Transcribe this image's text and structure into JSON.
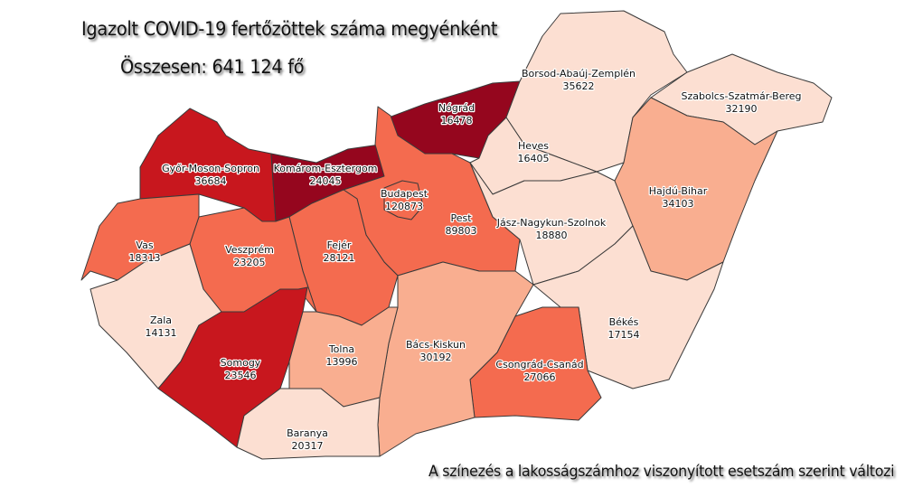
{
  "header": {
    "title": "Igazolt COVID-19 fertőzöttek száma megyénként",
    "total": "Összesen: 641 124 fő"
  },
  "footer": {
    "note": "A színezés a lakosságszámhoz viszonyított esetszám szerint változi"
  },
  "colors": {
    "class1": "#fcdfd2",
    "class2": "#f9ae90",
    "class3": "#f46b4f",
    "class4": "#c8171e",
    "class5": "#95061e"
  },
  "counties": [
    {
      "name": "Győr-Moson-Sopron",
      "cases": "36684",
      "class": "class4"
    },
    {
      "name": "Komárom-Esztergom",
      "cases": "24045",
      "class": "class5"
    },
    {
      "name": "Nógrád",
      "cases": "16478",
      "class": "class5"
    },
    {
      "name": "Pest",
      "cases": "89803",
      "class": "class3"
    },
    {
      "name": "Budapest",
      "cases": "120873",
      "class": "class3"
    },
    {
      "name": "Borsod-Abaúj-Zemplén",
      "cases": "35622",
      "class": "class1"
    },
    {
      "name": "Szabolcs-Szatmár-Bereg",
      "cases": "32190",
      "class": "class1"
    },
    {
      "name": "Heves",
      "cases": "16405",
      "class": "class1"
    },
    {
      "name": "Jász-Nagykun-Szolnok",
      "cases": "18880",
      "class": "class1"
    },
    {
      "name": "Hajdú-Bihar",
      "cases": "34103",
      "class": "class2"
    },
    {
      "name": "Békés",
      "cases": "17154",
      "class": "class1"
    },
    {
      "name": "Csongrád-Csanád",
      "cases": "27066",
      "class": "class3"
    },
    {
      "name": "Bács-Kiskun",
      "cases": "30192",
      "class": "class2"
    },
    {
      "name": "Fejér",
      "cases": "28121",
      "class": "class3"
    },
    {
      "name": "Veszprém",
      "cases": "23205",
      "class": "class3"
    },
    {
      "name": "Vas",
      "cases": "18313",
      "class": "class3"
    },
    {
      "name": "Zala",
      "cases": "14131",
      "class": "class1"
    },
    {
      "name": "Somogy",
      "cases": "23546",
      "class": "class4"
    },
    {
      "name": "Tolna",
      "cases": "13996",
      "class": "class2"
    },
    {
      "name": "Baranya",
      "cases": "20317",
      "class": "class1"
    }
  ]
}
